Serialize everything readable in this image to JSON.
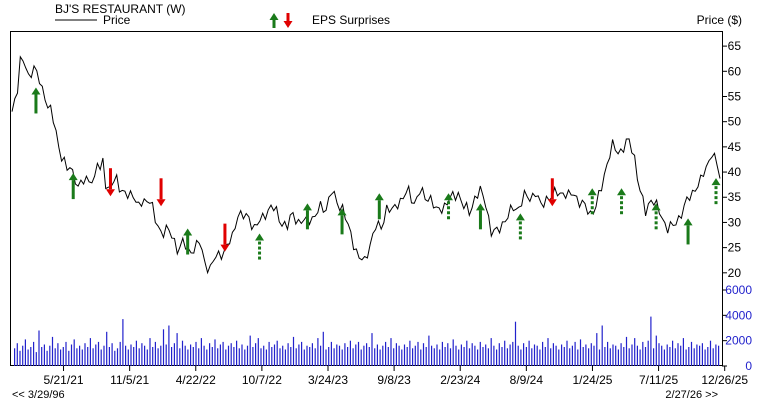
{
  "header": {
    "company": "BJ'S RESTAURANT (W)",
    "legend_price": "Price",
    "legend_eps": "EPS Surprises",
    "price_unit_label": "Price ($)"
  },
  "footer": {
    "range_start": "<< 3/29/96",
    "range_end": "2/27/26 >>"
  },
  "colors": {
    "up_arrow": "#1a7a1a",
    "down_arrow": "#e00000",
    "price_line": "#000000",
    "volume_bar": "#2222cc",
    "axis_text_volume": "#2222cc"
  },
  "chart_data": [
    {
      "type": "line",
      "title": "BJ'S RESTAURANT (W)",
      "ylabel": "Price ($)",
      "ylim": [
        15,
        68
      ],
      "y_ticks": [
        20,
        25,
        30,
        35,
        40,
        45,
        50,
        55,
        60,
        65
      ],
      "x_tick_labels": [
        "5/21/21",
        "11/5/21",
        "4/22/22",
        "10/7/22",
        "3/24/23",
        "9/8/23",
        "2/23/24",
        "8/9/24",
        "1/24/25",
        "7/11/25",
        "12/26/25"
      ],
      "x_tick_index": [
        6,
        30,
        54,
        78,
        102,
        126,
        150,
        174,
        198,
        222,
        246
      ],
      "x_count": 258,
      "series": [
        {
          "name": "Price",
          "anchors": [
            [
              0,
              52
            ],
            [
              2,
              57
            ],
            [
              3,
              62
            ],
            [
              5,
              61
            ],
            [
              6,
              59
            ],
            [
              8,
              61
            ],
            [
              9,
              59
            ],
            [
              10,
              58
            ],
            [
              12,
              55
            ],
            [
              14,
              52
            ],
            [
              16,
              48
            ],
            [
              17,
              45
            ],
            [
              19,
              42
            ],
            [
              20,
              40
            ],
            [
              21,
              41
            ],
            [
              23,
              39
            ],
            [
              24,
              37
            ],
            [
              26,
              38
            ],
            [
              28,
              39
            ],
            [
              30,
              38
            ],
            [
              31,
              42
            ],
            [
              32,
              40
            ],
            [
              33,
              43
            ],
            [
              34,
              38
            ],
            [
              35,
              36
            ],
            [
              36,
              37
            ],
            [
              38,
              39
            ],
            [
              40,
              36
            ],
            [
              42,
              35
            ],
            [
              44,
              36
            ],
            [
              46,
              33
            ],
            [
              48,
              34
            ],
            [
              50,
              35
            ],
            [
              51,
              33
            ],
            [
              52,
              30
            ],
            [
              54,
              28
            ],
            [
              56,
              29
            ],
            [
              58,
              27
            ],
            [
              60,
              25
            ],
            [
              62,
              26
            ],
            [
              64,
              24
            ],
            [
              66,
              25
            ],
            [
              68,
              26
            ],
            [
              70,
              22
            ],
            [
              72,
              21
            ],
            [
              74,
              23
            ],
            [
              76,
              24
            ],
            [
              78,
              25
            ],
            [
              80,
              27
            ],
            [
              82,
              32
            ],
            [
              84,
              31
            ],
            [
              86,
              31
            ],
            [
              88,
              29
            ],
            [
              90,
              30
            ],
            [
              92,
              32
            ],
            [
              94,
              33
            ],
            [
              96,
              32
            ],
            [
              98,
              30
            ],
            [
              100,
              29
            ],
            [
              102,
              32
            ],
            [
              104,
              30
            ],
            [
              106,
              30
            ],
            [
              108,
              31
            ],
            [
              110,
              31
            ],
            [
              112,
              33
            ],
            [
              114,
              33
            ],
            [
              116,
              36
            ],
            [
              118,
              34
            ],
            [
              120,
              33
            ],
            [
              121,
              31
            ],
            [
              122,
              29
            ],
            [
              124,
              26
            ],
            [
              126,
              23
            ],
            [
              128,
              22
            ],
            [
              130,
              26
            ],
            [
              132,
              29
            ],
            [
              134,
              29
            ],
            [
              136,
              33
            ],
            [
              138,
              32
            ],
            [
              140,
              34
            ],
            [
              142,
              35
            ],
            [
              144,
              36
            ],
            [
              146,
              34
            ],
            [
              148,
              36
            ],
            [
              150,
              35
            ],
            [
              152,
              35
            ],
            [
              154,
              32
            ],
            [
              156,
              33
            ],
            [
              158,
              34
            ],
            [
              160,
              35
            ],
            [
              162,
              36
            ],
            [
              164,
              33
            ],
            [
              166,
              32
            ],
            [
              168,
              35
            ],
            [
              170,
              36
            ],
            [
              172,
              34
            ],
            [
              174,
              28
            ],
            [
              176,
              28
            ],
            [
              178,
              30
            ],
            [
              180,
              31
            ],
            [
              182,
              33
            ],
            [
              184,
              33
            ],
            [
              186,
              35
            ],
            [
              188,
              35
            ],
            [
              190,
              36
            ],
            [
              192,
              33
            ],
            [
              194,
              35
            ],
            [
              196,
              35
            ],
            [
              198,
              36
            ],
            [
              200,
              36
            ],
            [
              202,
              35
            ],
            [
              204,
              36
            ],
            [
              206,
              34
            ],
            [
              208,
              33
            ],
            [
              210,
              32
            ],
            [
              212,
              33
            ],
            [
              214,
              37
            ],
            [
              216,
              42
            ],
            [
              218,
              45
            ],
            [
              220,
              44
            ],
            [
              222,
              45
            ],
            [
              224,
              46
            ],
            [
              226,
              43
            ],
            [
              228,
              36
            ],
            [
              230,
              32
            ],
            [
              232,
              35
            ],
            [
              234,
              33
            ],
            [
              236,
              31
            ],
            [
              238,
              29
            ],
            [
              240,
              29
            ],
            [
              242,
              31
            ],
            [
              244,
              33
            ],
            [
              246,
              35
            ],
            [
              248,
              37
            ],
            [
              250,
              38
            ],
            [
              252,
              41
            ],
            [
              254,
              44
            ],
            [
              256,
              41
            ],
            [
              257,
              39
            ]
          ]
        }
      ],
      "eps_surprises": [
        {
          "direction": "up",
          "index": 9,
          "price": 56,
          "dashed": false
        },
        {
          "direction": "up",
          "index": 23,
          "price": 39,
          "dashed": false
        },
        {
          "direction": "down",
          "index": 37,
          "price": 36,
          "dashed": false
        },
        {
          "direction": "down",
          "index": 56,
          "price": 34,
          "dashed": false
        },
        {
          "direction": "up",
          "index": 66,
          "price": 28,
          "dashed": false
        },
        {
          "direction": "down",
          "index": 80,
          "price": 25,
          "dashed": false
        },
        {
          "direction": "up",
          "index": 93,
          "price": 27,
          "dashed": true
        },
        {
          "direction": "up",
          "index": 111,
          "price": 33,
          "dashed": false
        },
        {
          "direction": "up",
          "index": 124,
          "price": 32,
          "dashed": false
        },
        {
          "direction": "up",
          "index": 138,
          "price": 35,
          "dashed": false
        },
        {
          "direction": "up",
          "index": 164,
          "price": 35,
          "dashed": true
        },
        {
          "direction": "up",
          "index": 176,
          "price": 33,
          "dashed": false
        },
        {
          "direction": "up",
          "index": 191,
          "price": 31,
          "dashed": true
        },
        {
          "direction": "down",
          "index": 203,
          "price": 34,
          "dashed": false
        },
        {
          "direction": "up",
          "index": 218,
          "price": 36,
          "dashed": true
        },
        {
          "direction": "up",
          "index": 229,
          "price": 36,
          "dashed": true
        },
        {
          "direction": "up",
          "index": 242,
          "price": 33,
          "dashed": true
        },
        {
          "direction": "up",
          "index": 254,
          "price": 30,
          "dashed": false
        },
        {
          "direction": "up",
          "index": 266,
          "price": 38,
          "dashed": true
        }
      ]
    },
    {
      "type": "bar",
      "ylabel": "",
      "ylim": [
        0,
        6000
      ],
      "y_ticks": [
        0,
        2000,
        4000,
        6000
      ],
      "series": [
        {
          "values": [
            1400,
            1800,
            1200,
            1600,
            2100,
            1300,
            1500,
            1900,
            1100,
            2800,
            1500,
            1700,
            1200,
            1600,
            2300,
            1400,
            1800,
            1300,
            1500,
            1900,
            1200,
            1700,
            2100,
            1400,
            1600,
            1300,
            1800,
            1500,
            2200,
            1400,
            1700,
            1900,
            1300,
            1600,
            2700,
            1500,
            1800,
            1200,
            1400,
            1900,
            3700,
            1600,
            1300,
            1700,
            1500,
            2000,
            1400,
            1800,
            1600,
            1300,
            2200,
            1500,
            1900,
            1400,
            1600,
            2900,
            1700,
            3200,
            1500,
            1800,
            2600,
            1400,
            2000,
            1600,
            1300,
            1700,
            1500,
            1900,
            1400,
            2200,
            1600,
            1300,
            1800,
            1500,
            2100,
            1400,
            1700,
            1900,
            1300,
            1600,
            1800,
            1500,
            2000,
            1400,
            1700,
            1300,
            1600,
            2400,
            1500,
            1800,
            2200,
            1400,
            1600,
            1300,
            1900,
            1500,
            1700,
            2000,
            1400,
            1600,
            1300,
            1800,
            1500,
            2300,
            1400,
            1700,
            1900,
            1300,
            1600,
            1500,
            1800,
            1400,
            2200,
            1600,
            2700,
            1300,
            1500,
            1900,
            1400,
            1700,
            1600,
            1300,
            1800,
            1500,
            2000,
            1400,
            1700,
            1900,
            1300,
            1600,
            1800,
            1500,
            2600,
            1400,
            1700,
            1300,
            1600,
            1900,
            1500,
            2200,
            1400,
            1800,
            1600,
            1300,
            1700,
            1500,
            2000,
            1400,
            1600,
            1900,
            1300,
            1800,
            1500,
            2400,
            1600,
            1400,
            1700,
            1300,
            1900,
            1500,
            1800,
            1400,
            2100,
            1600,
            1300,
            1700,
            1500,
            2000,
            1400,
            1800,
            1600,
            1300,
            1900,
            1500,
            1700,
            1400,
            2200,
            1600,
            1300,
            1800,
            1500,
            2000,
            1400,
            1700,
            1900,
            3500,
            1600,
            1300,
            1800,
            1500,
            2000,
            1400,
            1700,
            1600,
            1300,
            1900,
            1500,
            2200,
            1400,
            1800,
            1600,
            1300,
            1700,
            1500,
            2000,
            1400,
            1600,
            1900,
            1300,
            2100,
            1500,
            1700,
            1400,
            1800,
            1600,
            2600,
            1300,
            3200,
            1500,
            1900,
            1400,
            1700,
            1600,
            1300,
            1800,
            1500,
            2300,
            1400,
            1700,
            2200,
            1600,
            1300,
            1900,
            1500,
            2000,
            3900,
            1400,
            2400,
            1800,
            1600,
            1300,
            1700,
            1500,
            2000,
            1400,
            1800,
            1600,
            2200,
            1300,
            1500,
            1900,
            1400,
            1700,
            1600,
            1800,
            1300,
            1500,
            2000,
            1400,
            1700,
            1600
          ]
        }
      ]
    }
  ]
}
